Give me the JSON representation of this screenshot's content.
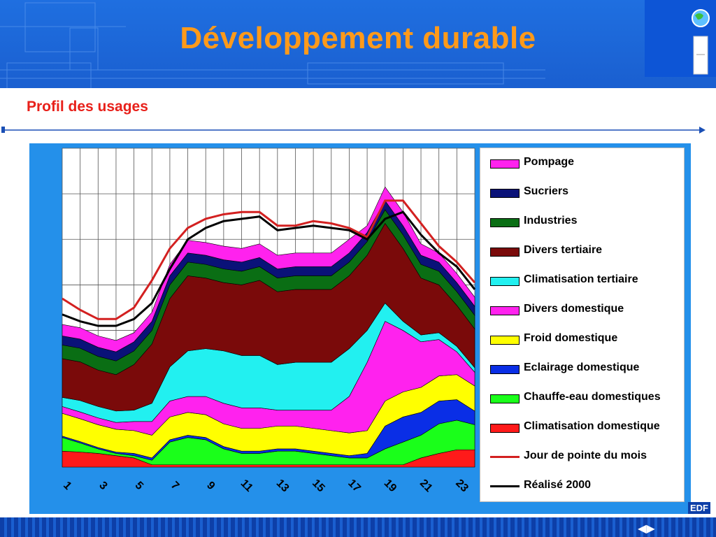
{
  "header": {
    "title": "Développement durable",
    "logo_icon": "globe-icon"
  },
  "section": {
    "subtitle": "Profil des usages"
  },
  "footer": {
    "brand": "EDF",
    "nav_icons": [
      "prev-arrow-icon",
      "next-arrow-icon"
    ]
  },
  "chart_data": {
    "type": "area",
    "stacked": true,
    "x": [
      1,
      2,
      3,
      4,
      5,
      6,
      7,
      8,
      9,
      10,
      11,
      12,
      13,
      14,
      15,
      16,
      17,
      18,
      19,
      20,
      21,
      22,
      23,
      24
    ],
    "tick_labels": [
      "1",
      "3",
      "5",
      "7",
      "9",
      "11",
      "13",
      "15",
      "17",
      "19",
      "21",
      "23"
    ],
    "ylim": [
      0,
      7
    ],
    "grid": true,
    "legend_position": "right",
    "series": [
      {
        "name": "Climatisation domestique",
        "color": "#ff1a1a",
        "values": [
          0.35,
          0.33,
          0.3,
          0.25,
          0.2,
          0.05,
          0.05,
          0.05,
          0.05,
          0.05,
          0.05,
          0.05,
          0.05,
          0.05,
          0.05,
          0.05,
          0.05,
          0.05,
          0.05,
          0.05,
          0.2,
          0.3,
          0.38,
          0.38
        ]
      },
      {
        "name": "Chauffe-eau domestiques",
        "color": "#1aff1a",
        "values": [
          0.3,
          0.2,
          0.1,
          0.05,
          0.05,
          0.1,
          0.5,
          0.6,
          0.55,
          0.35,
          0.25,
          0.25,
          0.3,
          0.3,
          0.25,
          0.2,
          0.15,
          0.15,
          0.35,
          0.5,
          0.5,
          0.65,
          0.65,
          0.55
        ]
      },
      {
        "name": "Eclairage domestique",
        "color": "#0a2ee6",
        "values": [
          0.03,
          0.03,
          0.03,
          0.03,
          0.05,
          0.05,
          0.05,
          0.05,
          0.05,
          0.05,
          0.05,
          0.05,
          0.05,
          0.05,
          0.05,
          0.05,
          0.05,
          0.1,
          0.5,
          0.55,
          0.5,
          0.5,
          0.45,
          0.3
        ]
      },
      {
        "name": "Froid domestique",
        "color": "#ffff00",
        "values": [
          0.5,
          0.5,
          0.5,
          0.5,
          0.5,
          0.5,
          0.5,
          0.5,
          0.5,
          0.5,
          0.5,
          0.5,
          0.5,
          0.5,
          0.5,
          0.5,
          0.5,
          0.5,
          0.55,
          0.55,
          0.55,
          0.55,
          0.55,
          0.55
        ]
      },
      {
        "name": "Divers domestique",
        "color": "#ff22ee",
        "values": [
          0.15,
          0.15,
          0.15,
          0.15,
          0.2,
          0.3,
          0.35,
          0.35,
          0.4,
          0.45,
          0.45,
          0.45,
          0.35,
          0.35,
          0.4,
          0.45,
          0.8,
          1.5,
          1.75,
          1.35,
          1.0,
          0.8,
          0.5,
          0.3
        ]
      },
      {
        "name": "Climatisation tertiaire",
        "color": "#22f0f0",
        "values": [
          0.2,
          0.25,
          0.25,
          0.25,
          0.25,
          0.4,
          0.75,
          1.0,
          1.05,
          1.15,
          1.15,
          1.15,
          1.0,
          1.05,
          1.05,
          1.05,
          1.05,
          0.7,
          0.4,
          0.2,
          0.15,
          0.15,
          0.12,
          0.1
        ]
      },
      {
        "name": "Divers tertiaire",
        "color": "#7a0a0a",
        "values": [
          0.85,
          0.85,
          0.8,
          0.8,
          1.0,
          1.3,
          1.5,
          1.65,
          1.55,
          1.5,
          1.55,
          1.65,
          1.6,
          1.6,
          1.6,
          1.6,
          1.6,
          1.65,
          1.75,
          1.6,
          1.25,
          1.05,
          0.9,
          0.85
        ]
      },
      {
        "name": "Industries",
        "color": "#0a6e14",
        "values": [
          0.3,
          0.3,
          0.3,
          0.3,
          0.3,
          0.3,
          0.3,
          0.3,
          0.3,
          0.3,
          0.3,
          0.3,
          0.3,
          0.3,
          0.3,
          0.3,
          0.3,
          0.3,
          0.3,
          0.3,
          0.3,
          0.3,
          0.3,
          0.3
        ]
      },
      {
        "name": "Sucriers",
        "color": "#0a1278",
        "values": [
          0.2,
          0.2,
          0.2,
          0.2,
          0.2,
          0.2,
          0.2,
          0.2,
          0.2,
          0.2,
          0.2,
          0.2,
          0.2,
          0.2,
          0.2,
          0.2,
          0.2,
          0.2,
          0.2,
          0.2,
          0.2,
          0.2,
          0.2,
          0.2
        ]
      },
      {
        "name": "Pompage",
        "color": "#ff22ee",
        "values": [
          0.25,
          0.25,
          0.25,
          0.25,
          0.2,
          0.2,
          0.25,
          0.28,
          0.28,
          0.3,
          0.3,
          0.3,
          0.3,
          0.3,
          0.3,
          0.3,
          0.3,
          0.15,
          0.3,
          0.3,
          0.25,
          0.2,
          0.2,
          0.2
        ]
      }
    ],
    "lines": [
      {
        "name": "Jour de pointe du mois",
        "color": "#d32020",
        "values": [
          3.7,
          3.45,
          3.25,
          3.25,
          3.5,
          4.1,
          4.8,
          5.25,
          5.45,
          5.55,
          5.6,
          5.6,
          5.3,
          5.3,
          5.4,
          5.35,
          5.25,
          5.05,
          5.85,
          5.85,
          5.35,
          4.85,
          4.5,
          4.05
        ]
      },
      {
        "name": "Réalisé 2000",
        "color": "#000000",
        "values": [
          3.35,
          3.2,
          3.1,
          3.1,
          3.25,
          3.6,
          4.35,
          5.0,
          5.25,
          5.4,
          5.45,
          5.5,
          5.2,
          5.25,
          5.3,
          5.25,
          5.2,
          5.0,
          5.45,
          5.6,
          5.1,
          4.7,
          4.4,
          3.9
        ]
      }
    ]
  }
}
